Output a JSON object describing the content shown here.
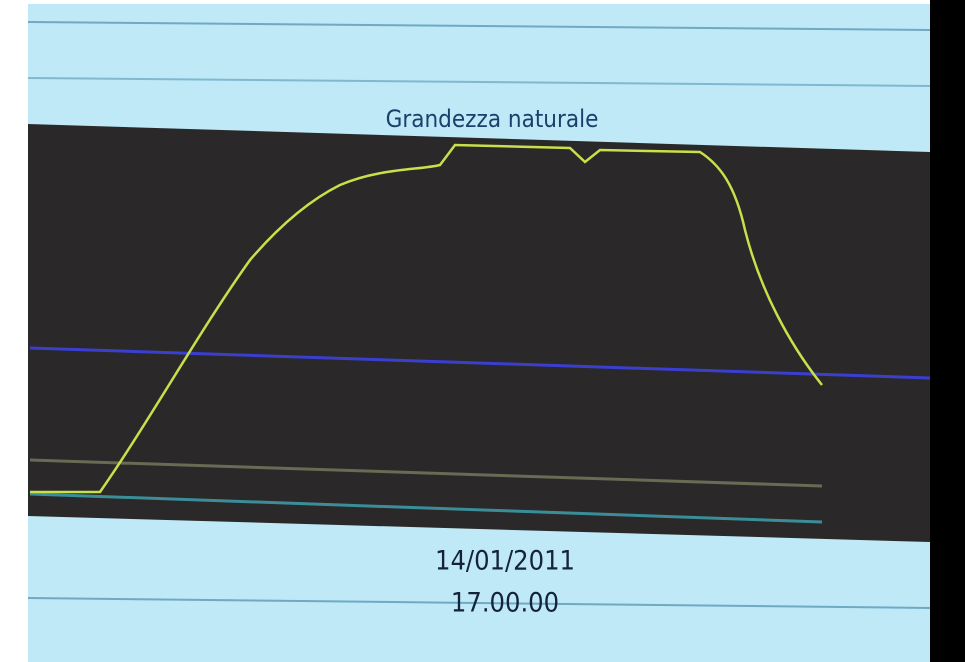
{
  "header": {
    "title": "Grandezza naturale"
  },
  "footer": {
    "date": "14/01/2011",
    "time": "17.00.00"
  }
}
